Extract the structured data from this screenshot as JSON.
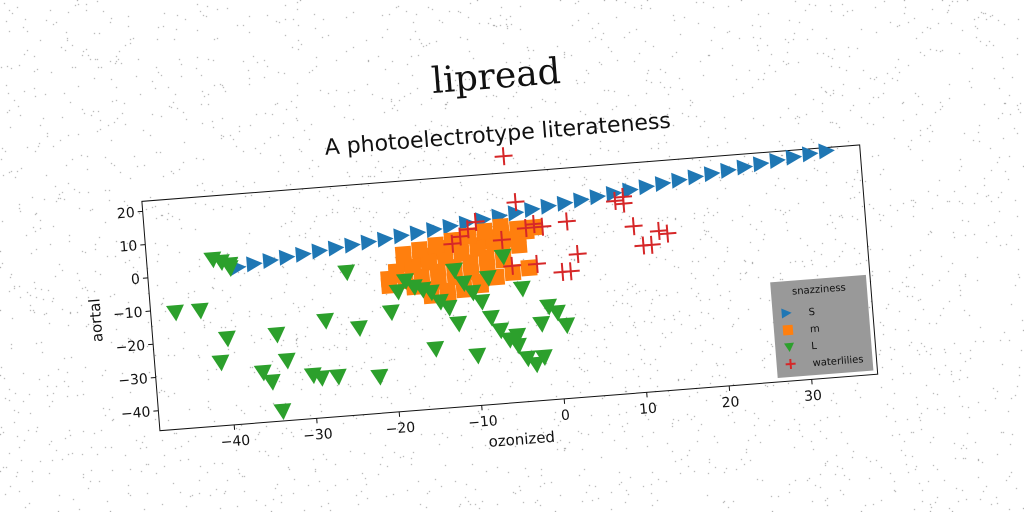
{
  "figure": {
    "title": "lipread",
    "subtitle": "A photoelectrotype literateness"
  },
  "chart_data": {
    "type": "scatter",
    "title": "A photoelectrotype literateness",
    "xlabel": "ozonized",
    "ylabel": "aortal",
    "xlim": [
      -49,
      38
    ],
    "ylim": [
      -46,
      23
    ],
    "xticks": [
      -40,
      -30,
      -20,
      -10,
      0,
      10,
      20,
      30
    ],
    "yticks": [
      20,
      10,
      0,
      -10,
      -20,
      -30,
      -40
    ],
    "xtick_labels": [
      "−40",
      "−30",
      "−20",
      "−10",
      "0",
      "10",
      "20",
      "30"
    ],
    "ytick_labels": [
      "20",
      "10",
      "0",
      "−10",
      "−20",
      "−30",
      "−40"
    ],
    "grid": false,
    "legend": {
      "title": "snazziness",
      "placement": "lower-right",
      "background": "#999999",
      "entries": [
        "S",
        "m",
        "L",
        "waterlilies"
      ]
    },
    "series": [
      {
        "name": "S",
        "marker": "triangle-right",
        "color": "#1f77b4",
        "x": [
          -38,
          -36,
          -34,
          -32,
          -30,
          -28,
          -26,
          -24,
          -22,
          -20,
          -18,
          -16,
          -14,
          -12,
          -10,
          -8,
          -6,
          -4,
          -2,
          0,
          2,
          4,
          6,
          8,
          10,
          12,
          14,
          16,
          18,
          20,
          22,
          24,
          26,
          28,
          30,
          32,
          34
        ],
        "y": [
          1.0,
          1.7,
          2.3,
          2.9,
          3.4,
          4.0,
          4.5,
          5.0,
          5.5,
          6.0,
          6.6,
          7.1,
          7.7,
          8.3,
          8.9,
          9.5,
          10.2,
          10.8,
          11.4,
          12.0,
          12.5,
          13.1,
          13.7,
          14.3,
          14.9,
          15.5,
          16.1,
          16.7,
          17.3,
          17.9,
          18.5,
          19.1,
          19.7,
          20.3,
          20.9,
          21.5,
          22.0
        ]
      },
      {
        "name": "m",
        "marker": "square",
        "color": "#ff7f0e",
        "x": [
          -20,
          -19,
          -18,
          -17,
          -16,
          -15,
          -14,
          -13,
          -12,
          -11,
          -10,
          -9,
          -8,
          -7,
          -6,
          -5,
          -4,
          -3,
          -2,
          -20,
          -18,
          -16,
          -14,
          -12,
          -10,
          -8,
          -6,
          -4,
          -17,
          -15,
          -13,
          -11,
          -9,
          -7,
          -5,
          -3,
          -19,
          -17,
          -15,
          -13,
          -11,
          -9,
          -7,
          -18,
          -16,
          -14,
          -12,
          -10,
          -8,
          -6,
          -4,
          -15,
          -13,
          -11,
          -9,
          -14,
          -12,
          -10,
          -8,
          -6
        ],
        "y": [
          -6,
          -4,
          -2,
          -3,
          -1,
          0,
          1,
          2,
          3,
          4,
          5,
          2,
          3,
          4,
          5,
          3,
          4,
          5,
          6,
          -8,
          -7,
          -6,
          -5,
          -4,
          -3,
          -2,
          -1,
          1,
          -9,
          -10,
          -11,
          -10,
          -9,
          -8,
          -7,
          -6,
          -5,
          -3,
          -2,
          -1,
          0,
          1,
          2,
          1,
          2,
          3,
          4,
          5,
          6,
          7,
          6,
          -12,
          -12,
          -11,
          -10,
          -8,
          -7,
          -6,
          -5,
          -3
        ]
      },
      {
        "name": "L",
        "marker": "triangle-down",
        "color": "#2ca02c",
        "x": [
          -41,
          -40,
          -39,
          -39,
          -46,
          -43,
          -40,
          -41,
          -34,
          -36,
          -35,
          -33,
          -34,
          -30,
          -29,
          -28,
          -24,
          -25,
          -17,
          -19,
          -15,
          -14,
          -13,
          -12,
          -11,
          -10,
          -9,
          -8,
          -7,
          -6,
          -5,
          -4,
          -3,
          -2,
          -1,
          0,
          1,
          -22,
          -27,
          -20,
          -16,
          -12,
          -8,
          -4,
          -6,
          -15,
          -10,
          -5,
          -2,
          -18
        ],
        "y": [
          4,
          3,
          2,
          1,
          -11,
          -11,
          -20,
          -27,
          -20,
          -31,
          -34,
          -28,
          -43,
          -33,
          -34,
          -17,
          -20,
          -3,
          -9,
          -10,
          -11,
          -14,
          -16,
          -21,
          -9,
          -12,
          -15,
          -20,
          -24,
          -27,
          -29,
          -33,
          -35,
          -33,
          -18,
          -20,
          -24,
          -35,
          -34,
          -16,
          -10,
          -5,
          -8,
          -12,
          -2,
          -28,
          -31,
          -26,
          -23,
          -7
        ]
      },
      {
        "name": "waterlilies",
        "marker": "plus",
        "color": "#d62728",
        "x": [
          -5,
          -4,
          -3,
          -2,
          1,
          2,
          3,
          2,
          9,
          10,
          11,
          12,
          13,
          14,
          -1,
          -2,
          -9,
          -10,
          -11,
          -12,
          -6,
          -5,
          8,
          9
        ],
        "y": [
          28,
          14,
          6,
          -5,
          -8,
          -8,
          -3,
          7,
          13,
          4,
          -2,
          -2,
          2,
          1,
          6,
          7,
          9,
          7,
          5,
          3,
          3,
          -5,
          12,
          11
        ]
      }
    ]
  }
}
